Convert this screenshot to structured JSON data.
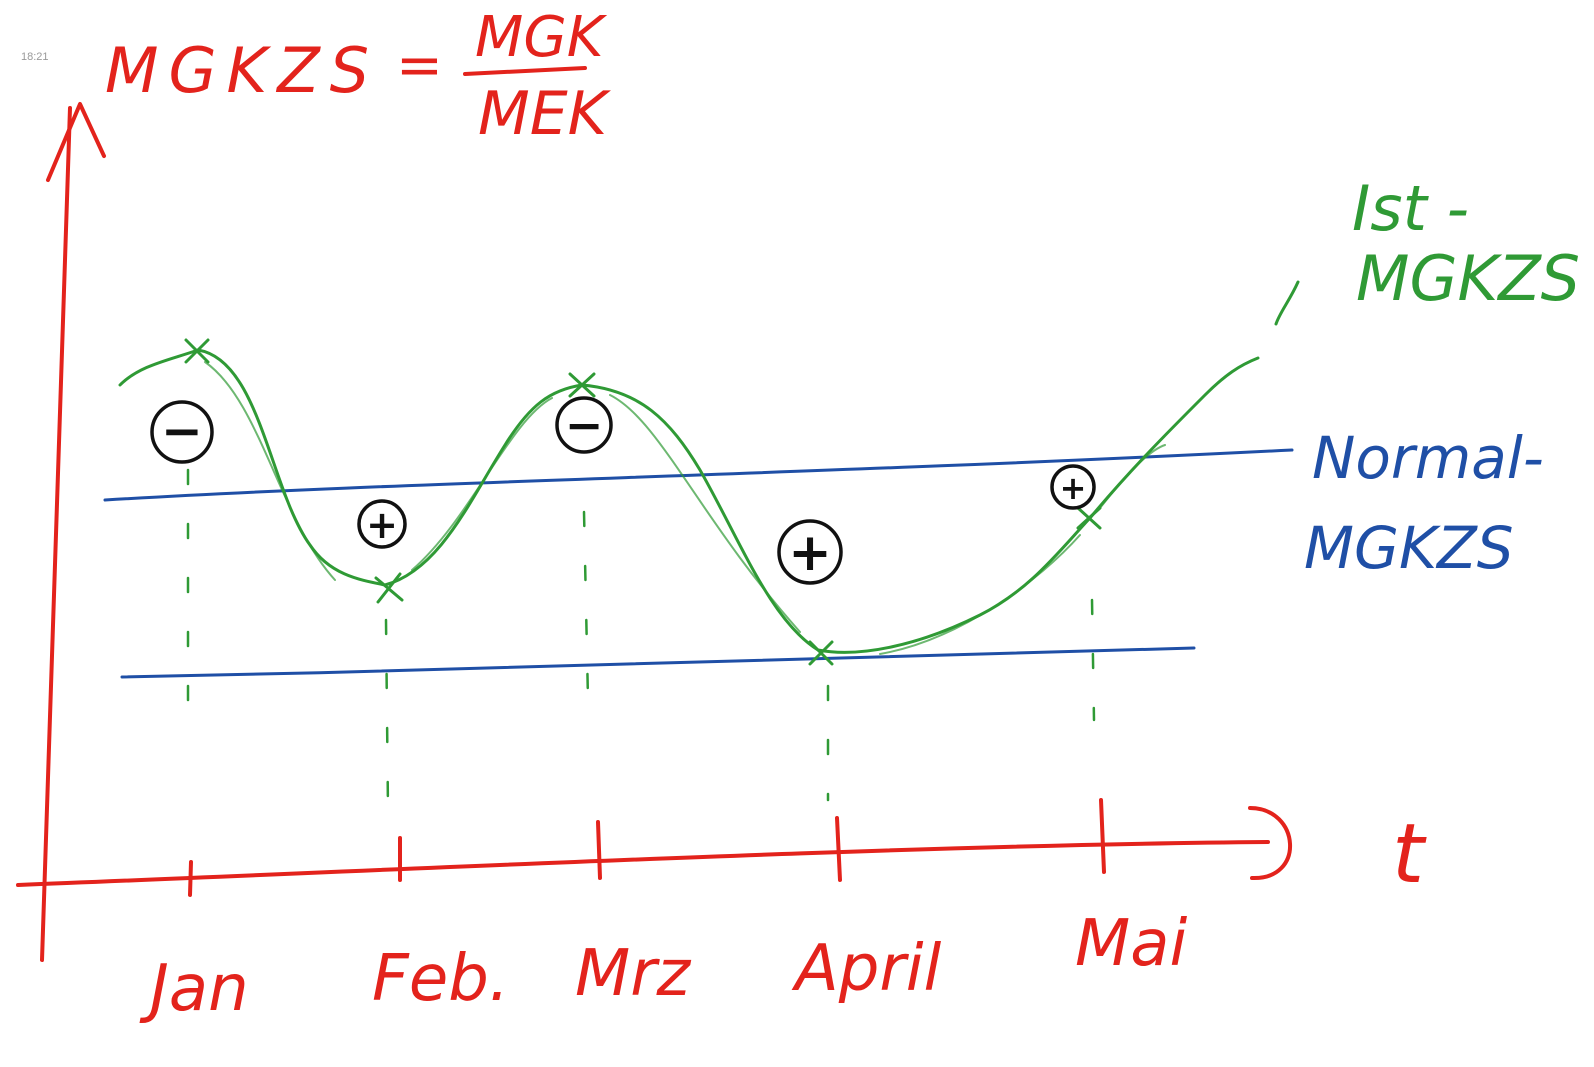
{
  "timestamp": "18:21",
  "colors": {
    "axis": "#e3231c",
    "actual": "#2f9a35",
    "normal": "#1f4fa6",
    "marks": "#111111"
  },
  "formula": {
    "lhs": "MGKZS",
    "equals": "=",
    "numerator": "MGK",
    "denominator": "MEK"
  },
  "axes": {
    "x_label": "t",
    "months": [
      "Jan",
      "Feb.",
      "Mrz",
      "April",
      "Mai"
    ]
  },
  "labels": {
    "actual_line1": "Ist -",
    "actual_line2": "MGKZS",
    "normal_line1": "Normal-",
    "normal_line2": "MGKZS"
  },
  "deviation_marks": [
    "−",
    "+",
    "−",
    "+",
    "+"
  ]
}
